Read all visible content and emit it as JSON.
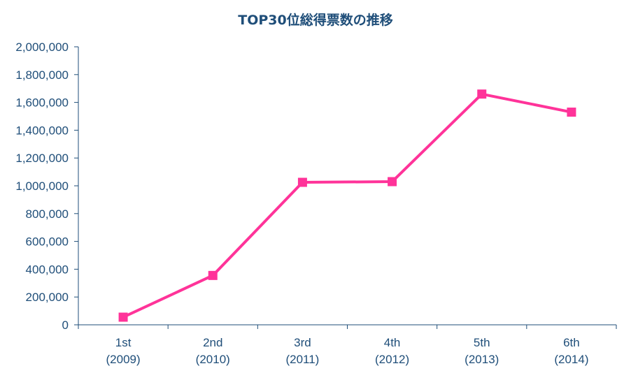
{
  "chart_data": {
    "type": "line",
    "title": "TOP30位総得票数の推移",
    "categories": [
      [
        "1st",
        "(2009)"
      ],
      [
        "2nd",
        "(2010)"
      ],
      [
        "3rd",
        "(2011)"
      ],
      [
        "4th",
        "(2012)"
      ],
      [
        "5th",
        "(2013)"
      ],
      [
        "6th",
        "(2014)"
      ]
    ],
    "series": [
      {
        "values": [
          55000,
          355000,
          1025000,
          1030000,
          1660000,
          1530000
        ],
        "color": "#ff3399",
        "marker": "square"
      }
    ],
    "ylim": [
      0,
      2000000
    ],
    "yticks": [
      0,
      200000,
      400000,
      600000,
      800000,
      1000000,
      1200000,
      1400000,
      1600000,
      1800000,
      2000000
    ],
    "ytick_labels": [
      "0",
      "200,000",
      "400,000",
      "600,000",
      "800,000",
      "1,000,000",
      "1,200,000",
      "1,400,000",
      "1,600,000",
      "1,800,000",
      "2,000,000"
    ],
    "grid": false,
    "legend": "none",
    "axis_color": "#1f4e79",
    "text_color": "#1f4e79"
  }
}
